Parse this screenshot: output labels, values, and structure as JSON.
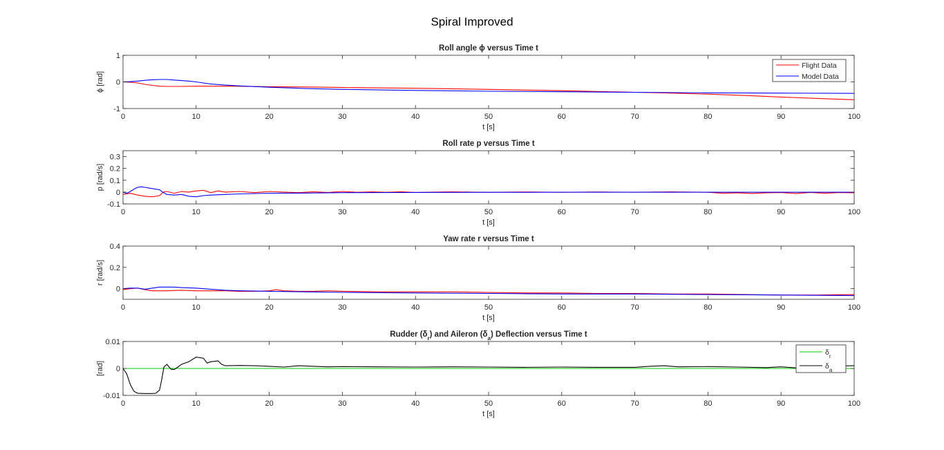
{
  "figure": {
    "title": "Spiral Improved"
  },
  "chart_data": [
    {
      "type": "line",
      "title": "Roll angle ϕ versus Time t",
      "xlabel": "t [s]",
      "ylabel": "ϕ [rad]",
      "xlim": [
        0,
        100
      ],
      "ylim": [
        -1,
        1
      ],
      "xticks": [
        0,
        10,
        20,
        30,
        40,
        50,
        60,
        70,
        80,
        90,
        100
      ],
      "yticks": [
        -1,
        0,
        1
      ],
      "ytick_labels": [
        "-1",
        "0",
        "1"
      ],
      "grid": false,
      "legend": {
        "placement": "top-right",
        "entries": [
          "Flight Data",
          "Model Data"
        ]
      },
      "series": [
        {
          "name": "Flight Data",
          "color": "#ff0000",
          "x": [
            0,
            1,
            2,
            3,
            4,
            5,
            6,
            8,
            10,
            12,
            15,
            20,
            25,
            30,
            40,
            50,
            60,
            70,
            75,
            80,
            85,
            90,
            95,
            100
          ],
          "y": [
            0,
            -0.01,
            -0.04,
            -0.09,
            -0.13,
            -0.16,
            -0.17,
            -0.17,
            -0.16,
            -0.16,
            -0.16,
            -0.18,
            -0.19,
            -0.21,
            -0.24,
            -0.28,
            -0.33,
            -0.39,
            -0.42,
            -0.46,
            -0.51,
            -0.57,
            -0.62,
            -0.67
          ]
        },
        {
          "name": "Model Data",
          "color": "#0000ff",
          "x": [
            0,
            1,
            2,
            3,
            4,
            5,
            6,
            7,
            8,
            9,
            10,
            11,
            12,
            14,
            16,
            20,
            25,
            30,
            40,
            50,
            60,
            70,
            80,
            90,
            100
          ],
          "y": [
            0,
            0.01,
            0.03,
            0.06,
            0.08,
            0.09,
            0.09,
            0.07,
            0.05,
            0.03,
            0,
            -0.04,
            -0.08,
            -0.12,
            -0.15,
            -0.2,
            -0.25,
            -0.28,
            -0.32,
            -0.35,
            -0.37,
            -0.39,
            -0.41,
            -0.42,
            -0.43
          ]
        }
      ]
    },
    {
      "type": "line",
      "title": "Roll rate p versus Time t",
      "xlabel": "t [s]",
      "ylabel": "p [rad/s]",
      "xlim": [
        0,
        100
      ],
      "ylim": [
        -0.1,
        0.35
      ],
      "xticks": [
        0,
        10,
        20,
        30,
        40,
        50,
        60,
        70,
        80,
        90,
        100
      ],
      "yticks": [
        -0.1,
        0,
        0.1,
        0.2,
        0.3
      ],
      "ytick_labels": [
        "-0.1",
        "0",
        "0.1",
        "0.2",
        "0.3"
      ],
      "grid": false,
      "series": [
        {
          "name": "Flight Data",
          "color": "#ff0000",
          "x": [
            0,
            1,
            2,
            3,
            4,
            5,
            5.5,
            6,
            7,
            8,
            9,
            10,
            11,
            12,
            13,
            14,
            16,
            18,
            20,
            22,
            24,
            26,
            28,
            30,
            32,
            34,
            36,
            38,
            40,
            45,
            50,
            55,
            60,
            65,
            70,
            75,
            80,
            82,
            84,
            86,
            88,
            90,
            92,
            94,
            96,
            98,
            100
          ],
          "y": [
            -0.02,
            -0.01,
            -0.025,
            -0.035,
            -0.04,
            -0.03,
            0,
            0.005,
            -0.01,
            0.005,
            0,
            0.01,
            0.015,
            -0.005,
            0.01,
            0,
            0.005,
            -0.005,
            0.005,
            0,
            -0.005,
            0.003,
            -0.003,
            0.005,
            -0.002,
            0.002,
            -0.002,
            0.003,
            -0.003,
            0.002,
            -0.002,
            0.001,
            -0.002,
            0.001,
            -0.001,
            0.002,
            -0.002,
            -0.01,
            -0.006,
            -0.012,
            -0.006,
            -0.004,
            -0.012,
            -0.003,
            -0.01,
            -0.004,
            -0.006
          ]
        },
        {
          "name": "Model Data",
          "color": "#0000ff",
          "x": [
            0,
            0.5,
            1,
            1.5,
            2,
            2.5,
            3,
            4,
            5,
            5.5,
            6,
            7,
            8,
            9,
            10,
            11,
            12,
            14,
            16,
            20,
            25,
            30,
            40,
            50,
            60,
            70,
            80,
            90,
            100
          ],
          "y": [
            0,
            -0.01,
            0.005,
            0.025,
            0.04,
            0.045,
            0.04,
            0.03,
            0.02,
            -0.005,
            -0.02,
            -0.025,
            -0.02,
            -0.035,
            -0.04,
            -0.03,
            -0.025,
            -0.02,
            -0.015,
            -0.01,
            -0.008,
            -0.005,
            -0.003,
            -0.002,
            -0.001,
            -0.001,
            -0.001,
            -0.001,
            -0.001
          ]
        }
      ]
    },
    {
      "type": "line",
      "title": "Yaw rate r versus Time t",
      "xlabel": "t [s]",
      "ylabel": "r [rad/s]",
      "xlim": [
        0,
        100
      ],
      "ylim": [
        -0.1,
        0.4
      ],
      "xticks": [
        0,
        10,
        20,
        30,
        40,
        50,
        60,
        70,
        80,
        90,
        100
      ],
      "yticks": [
        0,
        0.2,
        0.4
      ],
      "ytick_labels": [
        "0",
        "0.2",
        "0.4"
      ],
      "grid": false,
      "series": [
        {
          "name": "Flight Data",
          "color": "#ff0000",
          "x": [
            0,
            1,
            2,
            3,
            4,
            5,
            6,
            8,
            10,
            12,
            14,
            16,
            18,
            20,
            21,
            22,
            24,
            26,
            28,
            30,
            35,
            40,
            45,
            50,
            55,
            60,
            65,
            70,
            75,
            80,
            85,
            90,
            95,
            100
          ],
          "y": [
            -0.01,
            0,
            0.005,
            -0.01,
            -0.02,
            -0.02,
            -0.02,
            -0.015,
            -0.02,
            -0.02,
            -0.02,
            -0.025,
            -0.025,
            -0.02,
            -0.01,
            -0.02,
            -0.025,
            -0.025,
            -0.02,
            -0.025,
            -0.03,
            -0.03,
            -0.03,
            -0.035,
            -0.04,
            -0.04,
            -0.045,
            -0.045,
            -0.05,
            -0.05,
            -0.055,
            -0.06,
            -0.06,
            -0.055
          ]
        },
        {
          "name": "Model Data",
          "color": "#0000ff",
          "x": [
            0,
            1,
            2,
            3,
            4,
            5,
            6,
            7,
            8,
            10,
            12,
            14,
            16,
            20,
            25,
            30,
            40,
            50,
            60,
            70,
            80,
            90,
            100
          ],
          "y": [
            0,
            0.005,
            0.005,
            -0.005,
            0.005,
            0.015,
            0.015,
            0.015,
            0.01,
            0.005,
            -0.005,
            -0.015,
            -0.02,
            -0.025,
            -0.03,
            -0.035,
            -0.04,
            -0.045,
            -0.05,
            -0.05,
            -0.055,
            -0.06,
            -0.065
          ]
        }
      ]
    },
    {
      "type": "line",
      "title": "Rudder (δ",
      "title_parts": [
        "Rudder (δ",
        "r",
        ") and Aileron (δ",
        "a",
        ") Deflection versus Time t"
      ],
      "xlabel": "t [s]",
      "ylabel": "[rad]",
      "xlim": [
        0,
        100
      ],
      "ylim": [
        -0.01,
        0.01
      ],
      "xticks": [
        0,
        10,
        20,
        30,
        40,
        50,
        60,
        70,
        80,
        90,
        100
      ],
      "yticks": [
        -0.01,
        0,
        0.01
      ],
      "ytick_labels": [
        "-0.01",
        "0",
        "0.01"
      ],
      "grid": false,
      "legend": {
        "placement": "top-right",
        "entries": [
          [
            "δ",
            "r"
          ],
          [
            "δ",
            "a"
          ]
        ]
      },
      "series": [
        {
          "name": "δr",
          "color": "#00cc00",
          "x": [
            0,
            10,
            20,
            30,
            40,
            50,
            60,
            70,
            80,
            90,
            100
          ],
          "y": [
            0,
            0,
            0,
            0,
            0,
            0,
            0,
            0,
            0,
            0,
            0
          ]
        },
        {
          "name": "δa",
          "color": "#000000",
          "x": [
            0,
            0.5,
            1,
            1.5,
            2,
            3,
            4,
            4.5,
            5,
            5.3,
            5.6,
            6,
            6.3,
            6.6,
            7,
            7.5,
            8,
            9,
            10,
            11,
            11.5,
            12,
            13,
            13.5,
            14,
            16,
            18,
            20,
            22,
            24,
            26,
            28,
            30,
            35,
            40,
            45,
            50,
            55,
            60,
            65,
            70,
            72,
            74,
            76,
            80,
            84,
            88,
            90,
            92,
            94,
            96,
            98,
            100
          ],
          "y": [
            0,
            -0.002,
            -0.006,
            -0.0085,
            -0.0092,
            -0.0093,
            -0.0093,
            -0.0092,
            -0.008,
            -0.004,
            0.0005,
            0.0015,
            0.0005,
            -0.0003,
            -0.0004,
            0.0005,
            0.0015,
            0.0025,
            0.0042,
            0.0038,
            0.002,
            0.0025,
            0.0028,
            0.0015,
            0.001,
            0.0011,
            0.001,
            0.0008,
            0.0005,
            0.001,
            0.0008,
            0.0006,
            0.0007,
            0.0006,
            0.0005,
            0.0006,
            0.0005,
            0.0004,
            0.0005,
            0.0004,
            0.0004,
            0.0008,
            0.001,
            0.0006,
            0.0007,
            0.0005,
            0.0003,
            0.0006,
            0.0002,
            0.0008,
            0.0005,
            0.0009,
            0.001
          ]
        }
      ]
    }
  ]
}
